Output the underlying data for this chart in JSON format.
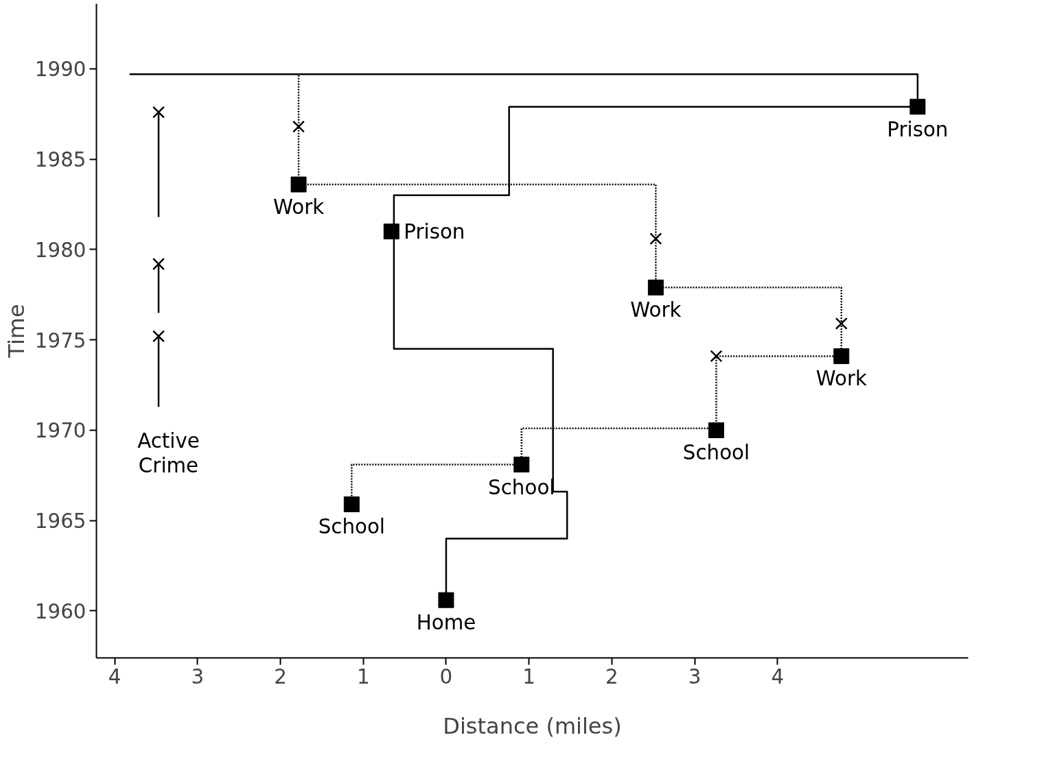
{
  "chart_data": {
    "type": "line",
    "xlabel": "Distance (miles)",
    "ylabel": "Time",
    "xlim": [
      -4.22,
      6.3
    ],
    "ylim": [
      1957.4,
      1993.6
    ],
    "xticks": [
      {
        "value": -4,
        "label": "4"
      },
      {
        "value": -3,
        "label": "3"
      },
      {
        "value": -2,
        "label": "2"
      },
      {
        "value": -1,
        "label": "1"
      },
      0,
      1,
      2,
      3,
      4
    ],
    "yticks": [
      1960,
      1965,
      1970,
      1975,
      1980,
      1985,
      1990
    ],
    "grid": false,
    "series": [
      {
        "line_style": "solid",
        "marker": "none",
        "color": "#000000",
        "x": [
          0,
          0,
          1.46,
          1.46,
          1.29,
          1.29,
          -0.63,
          -0.63,
          0.76,
          0.76,
          5.69,
          5.69,
          -3.82
        ],
        "values": [
          1960.6,
          1964.0,
          1964.0,
          1966.6,
          1966.6,
          1974.5,
          1974.5,
          1983.0,
          1983.0,
          1987.9,
          1987.9,
          1989.7,
          1989.7
        ]
      },
      {
        "line_style": "dotted",
        "marker": "none",
        "color": "#000000",
        "x": [
          -1.14,
          -1.14,
          0.91,
          0.91,
          3.26,
          3.26,
          4.77,
          4.77,
          2.53,
          2.53,
          -1.78,
          -1.78
        ],
        "values": [
          1965.9,
          1968.1,
          1968.1,
          1970.1,
          1970.1,
          1974.1,
          1974.1,
          1977.9,
          1977.9,
          1983.6,
          1983.6,
          1989.7
        ]
      },
      {
        "line_style": "solid",
        "marker": "none",
        "color": "#000000",
        "x": [
          -3.47,
          -3.47
        ],
        "values": [
          1971.3,
          1975.2
        ]
      },
      {
        "line_style": "solid",
        "marker": "none",
        "color": "#000000",
        "x": [
          -3.47,
          -3.47
        ],
        "values": [
          1976.5,
          1979.2
        ]
      },
      {
        "line_style": "solid",
        "marker": "none",
        "color": "#000000",
        "x": [
          -3.47,
          -3.47
        ],
        "values": [
          1981.8,
          1987.6
        ]
      },
      {
        "type": "scatter",
        "marker": "square",
        "color": "#000000",
        "x": [
          0,
          -1.14,
          0.91,
          3.26,
          4.77,
          2.53,
          -1.78,
          5.69
        ],
        "values": [
          1960.6,
          1965.9,
          1968.1,
          1970.0,
          1974.1,
          1977.9,
          1983.6,
          1987.9
        ],
        "value_labels": [
          "Home",
          "School",
          "School",
          "School",
          "Work",
          "Work",
          "Work",
          "Prison"
        ]
      },
      {
        "type": "scatter",
        "marker": "square",
        "color": "#000000",
        "x": [
          -0.66
        ],
        "values": [
          1981.0
        ],
        "value_labels": [
          "Prison"
        ]
      },
      {
        "type": "scatter",
        "marker": "cross",
        "color": "#000000",
        "x": [
          3.26,
          4.77,
          2.53,
          -1.78,
          -3.47,
          -3.47,
          -3.47
        ],
        "values": [
          1974.1,
          1975.9,
          1980.6,
          1986.8,
          1987.6,
          1979.2,
          1975.2
        ]
      }
    ],
    "annotations": [
      "Active\nCrime"
    ]
  }
}
